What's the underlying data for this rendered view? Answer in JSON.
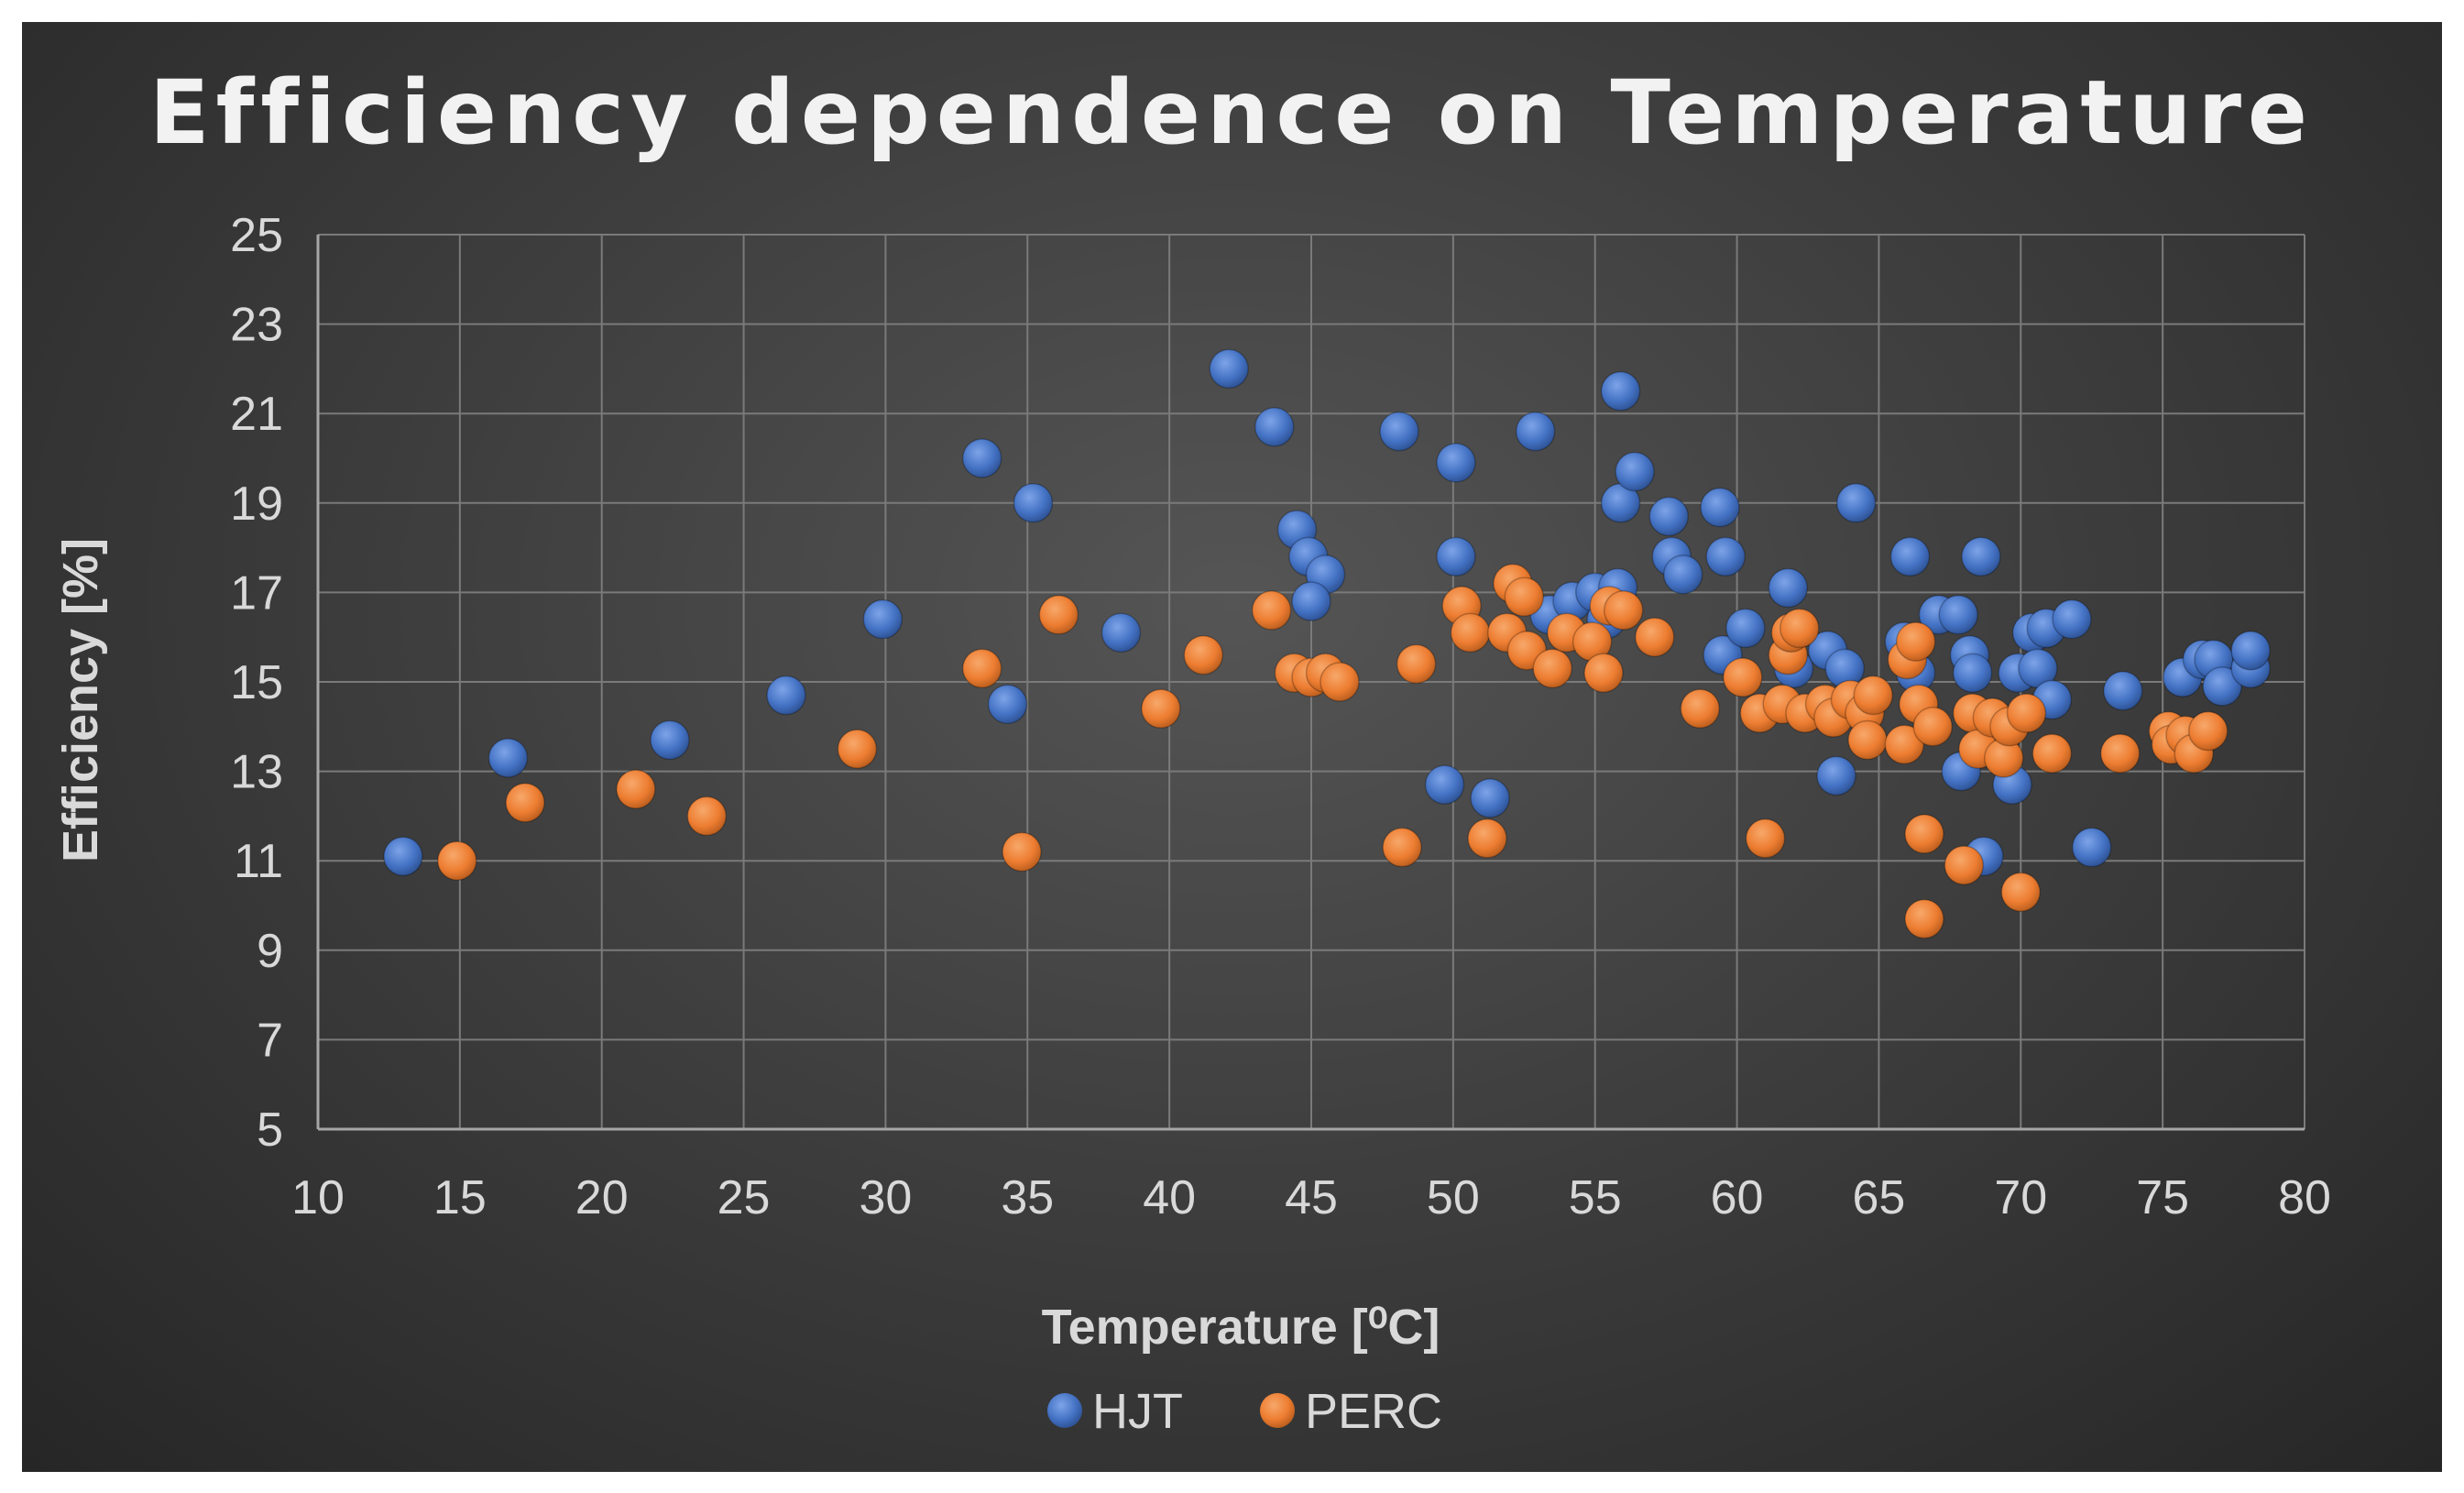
{
  "chart_data": {
    "type": "scatter",
    "title": "Efficiency dependence on Temperature",
    "xlabel": "Temperature [⁰C]",
    "ylabel": "Efficiency [%]",
    "xlim": [
      10,
      80
    ],
    "ylim": [
      5,
      25
    ],
    "xticks": [
      "10",
      "15",
      "20",
      "25",
      "30",
      "35",
      "40",
      "45",
      "50",
      "55",
      "60",
      "65",
      "70",
      "75",
      "80"
    ],
    "yticks": [
      "5",
      "7",
      "9",
      "11",
      "13",
      "15",
      "17",
      "19",
      "21",
      "23",
      "25"
    ],
    "grid": true,
    "legend_position": "bottom",
    "series": [
      {
        "name": "HJT",
        "color": "#4472C4",
        "points": [
          [
            13.0,
            11.1
          ],
          [
            16.7,
            13.3
          ],
          [
            22.4,
            13.7
          ],
          [
            26.5,
            14.7
          ],
          [
            29.9,
            16.4
          ],
          [
            33.4,
            20.0
          ],
          [
            34.3,
            14.5
          ],
          [
            35.2,
            19.0
          ],
          [
            38.3,
            16.1
          ],
          [
            42.1,
            22.0
          ],
          [
            43.7,
            20.7
          ],
          [
            44.5,
            18.4
          ],
          [
            44.9,
            17.8
          ],
          [
            45.5,
            17.4
          ],
          [
            45.0,
            16.8
          ],
          [
            48.1,
            20.6
          ],
          [
            49.7,
            12.7
          ],
          [
            50.1,
            19.9
          ],
          [
            50.1,
            17.8
          ],
          [
            51.3,
            12.4
          ],
          [
            52.9,
            20.6
          ],
          [
            53.4,
            16.5
          ],
          [
            54.2,
            16.8
          ],
          [
            55.0,
            17.0
          ],
          [
            55.4,
            16.4
          ],
          [
            55.9,
            21.5
          ],
          [
            55.9,
            19.0
          ],
          [
            56.4,
            19.7
          ],
          [
            55.8,
            17.1
          ],
          [
            57.6,
            18.7
          ],
          [
            57.7,
            17.8
          ],
          [
            58.1,
            17.4
          ],
          [
            59.4,
            18.9
          ],
          [
            59.6,
            17.8
          ],
          [
            59.5,
            15.6
          ],
          [
            60.3,
            16.2
          ],
          [
            61.8,
            17.1
          ],
          [
            62.0,
            15.3
          ],
          [
            63.2,
            15.7
          ],
          [
            63.8,
            15.3
          ],
          [
            63.5,
            12.9
          ],
          [
            64.2,
            19.0
          ],
          [
            65.9,
            15.9
          ],
          [
            66.3,
            15.2
          ],
          [
            66.1,
            17.8
          ],
          [
            67.1,
            16.5
          ],
          [
            67.8,
            16.5
          ],
          [
            68.2,
            15.6
          ],
          [
            68.3,
            15.2
          ],
          [
            68.6,
            17.8
          ],
          [
            67.9,
            13.0
          ],
          [
            68.7,
            11.1
          ],
          [
            69.7,
            12.7
          ],
          [
            69.9,
            15.2
          ],
          [
            70.4,
            16.1
          ],
          [
            70.6,
            15.3
          ],
          [
            70.9,
            16.2
          ],
          [
            71.1,
            14.6
          ],
          [
            71.8,
            16.4
          ],
          [
            72.5,
            11.3
          ],
          [
            73.6,
            14.8
          ],
          [
            75.7,
            15.1
          ],
          [
            76.4,
            15.5
          ],
          [
            76.8,
            15.5
          ],
          [
            77.1,
            14.9
          ],
          [
            78.1,
            15.3
          ],
          [
            78.1,
            15.7
          ]
        ]
      },
      {
        "name": "PERC",
        "color": "#ED7D31",
        "points": [
          [
            14.9,
            11.0
          ],
          [
            17.3,
            12.3
          ],
          [
            21.2,
            12.6
          ],
          [
            23.7,
            12.0
          ],
          [
            29.0,
            13.5
          ],
          [
            33.4,
            15.3
          ],
          [
            34.8,
            11.2
          ],
          [
            36.1,
            16.5
          ],
          [
            39.7,
            14.4
          ],
          [
            41.2,
            15.6
          ],
          [
            43.6,
            16.6
          ],
          [
            44.4,
            15.2
          ],
          [
            45.0,
            15.1
          ],
          [
            45.5,
            15.2
          ],
          [
            46.0,
            15.0
          ],
          [
            48.2,
            11.3
          ],
          [
            48.7,
            15.4
          ],
          [
            50.3,
            16.7
          ],
          [
            50.6,
            16.1
          ],
          [
            51.2,
            11.5
          ],
          [
            51.9,
            16.1
          ],
          [
            52.1,
            17.2
          ],
          [
            52.5,
            16.9
          ],
          [
            52.6,
            15.7
          ],
          [
            53.5,
            15.3
          ],
          [
            54.0,
            16.1
          ],
          [
            54.9,
            15.9
          ],
          [
            55.3,
            15.2
          ],
          [
            55.5,
            16.7
          ],
          [
            56.0,
            16.6
          ],
          [
            57.1,
            16.0
          ],
          [
            58.7,
            14.4
          ],
          [
            60.2,
            15.1
          ],
          [
            60.8,
            14.3
          ],
          [
            61.0,
            11.5
          ],
          [
            61.6,
            14.5
          ],
          [
            61.8,
            15.6
          ],
          [
            61.9,
            16.1
          ],
          [
            62.2,
            16.2
          ],
          [
            62.4,
            14.3
          ],
          [
            63.1,
            14.5
          ],
          [
            63.4,
            14.2
          ],
          [
            64.0,
            14.6
          ],
          [
            64.5,
            14.3
          ],
          [
            64.8,
            14.7
          ],
          [
            64.6,
            13.7
          ],
          [
            65.9,
            13.6
          ],
          [
            66.0,
            15.5
          ],
          [
            66.3,
            15.9
          ],
          [
            66.4,
            14.5
          ],
          [
            66.6,
            11.6
          ],
          [
            66.6,
            9.7
          ],
          [
            66.9,
            14.0
          ],
          [
            68.0,
            10.9
          ],
          [
            68.3,
            14.3
          ],
          [
            68.5,
            13.5
          ],
          [
            69.0,
            14.2
          ],
          [
            69.4,
            13.3
          ],
          [
            69.6,
            14.0
          ],
          [
            70.0,
            10.3
          ],
          [
            70.2,
            14.3
          ],
          [
            71.1,
            13.4
          ],
          [
            73.5,
            13.4
          ],
          [
            75.2,
            13.9
          ],
          [
            75.3,
            13.6
          ],
          [
            75.8,
            13.8
          ],
          [
            76.1,
            13.4
          ],
          [
            76.6,
            13.9
          ]
        ]
      }
    ]
  }
}
